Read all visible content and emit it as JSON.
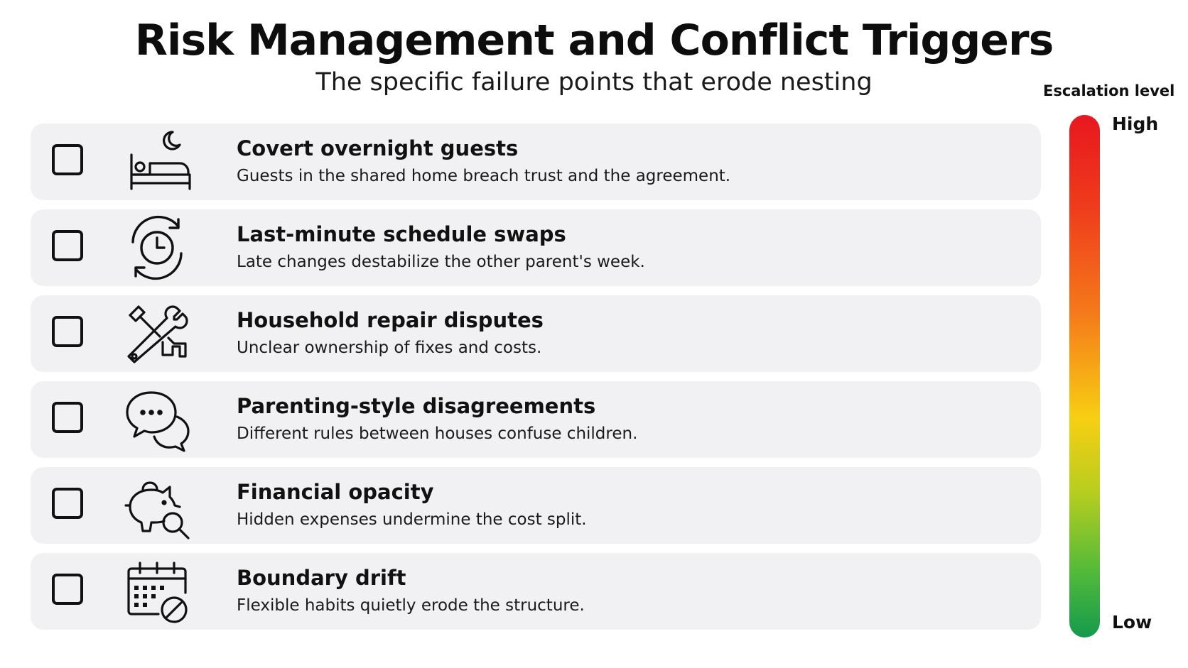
{
  "header": {
    "title": "Risk Management and Conflict Triggers",
    "subtitle": "The specific failure points that erode nesting"
  },
  "triggers": [
    {
      "icon": "bed-moon-icon",
      "title": "Covert overnight guests",
      "description": "Guests in the shared home breach trust and the agreement.",
      "checked": false
    },
    {
      "icon": "clock-swap-icon",
      "title": "Last-minute schedule swaps",
      "description": "Late changes destabilize the other parent's week.",
      "checked": false
    },
    {
      "icon": "wrench-tools-icon",
      "title": "Household repair disputes",
      "description": "Unclear ownership of fixes and costs.",
      "checked": false
    },
    {
      "icon": "chat-bubbles-icon",
      "title": "Parenting-style disagreements",
      "description": "Different rules between houses confuse children.",
      "checked": false
    },
    {
      "icon": "piggy-bank-search-icon",
      "title": "Financial opacity",
      "description": "Hidden expenses undermine the cost split.",
      "checked": false
    },
    {
      "icon": "calendar-blocked-icon",
      "title": "Boundary drift",
      "description": "Flexible habits quietly erode the structure.",
      "checked": false
    }
  ],
  "escalation_scale": {
    "title": "Escalation level",
    "high_label": "High",
    "low_label": "Low",
    "colors": {
      "high": "#e8171e",
      "mid": "#f7cf12",
      "low": "#159a4e"
    }
  }
}
